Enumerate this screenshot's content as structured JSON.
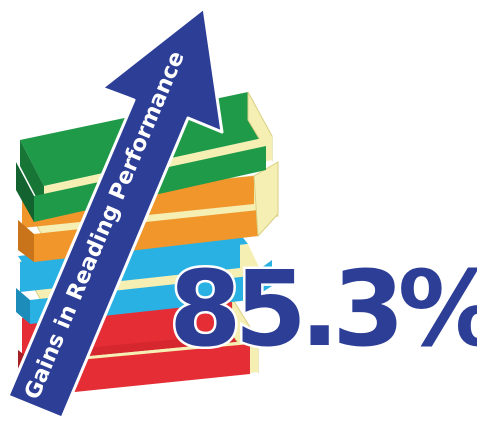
{
  "arrow": {
    "label": "Gains in Reading Performance",
    "color": "#2d3e97"
  },
  "statistic": {
    "value": "85.3%",
    "fill": "#2d3e97",
    "outline": "#ffffff"
  },
  "books": [
    {
      "name": "red",
      "cover": "#e52d35",
      "shade": "#b8232a"
    },
    {
      "name": "blue",
      "cover": "#2ab1e3",
      "shade": "#1c8cba"
    },
    {
      "name": "orange",
      "cover": "#f0962b",
      "shade": "#c9741a"
    },
    {
      "name": "green",
      "cover": "#1e9a48",
      "shade": "#177636"
    }
  ],
  "pages_color": "#f5efb3"
}
